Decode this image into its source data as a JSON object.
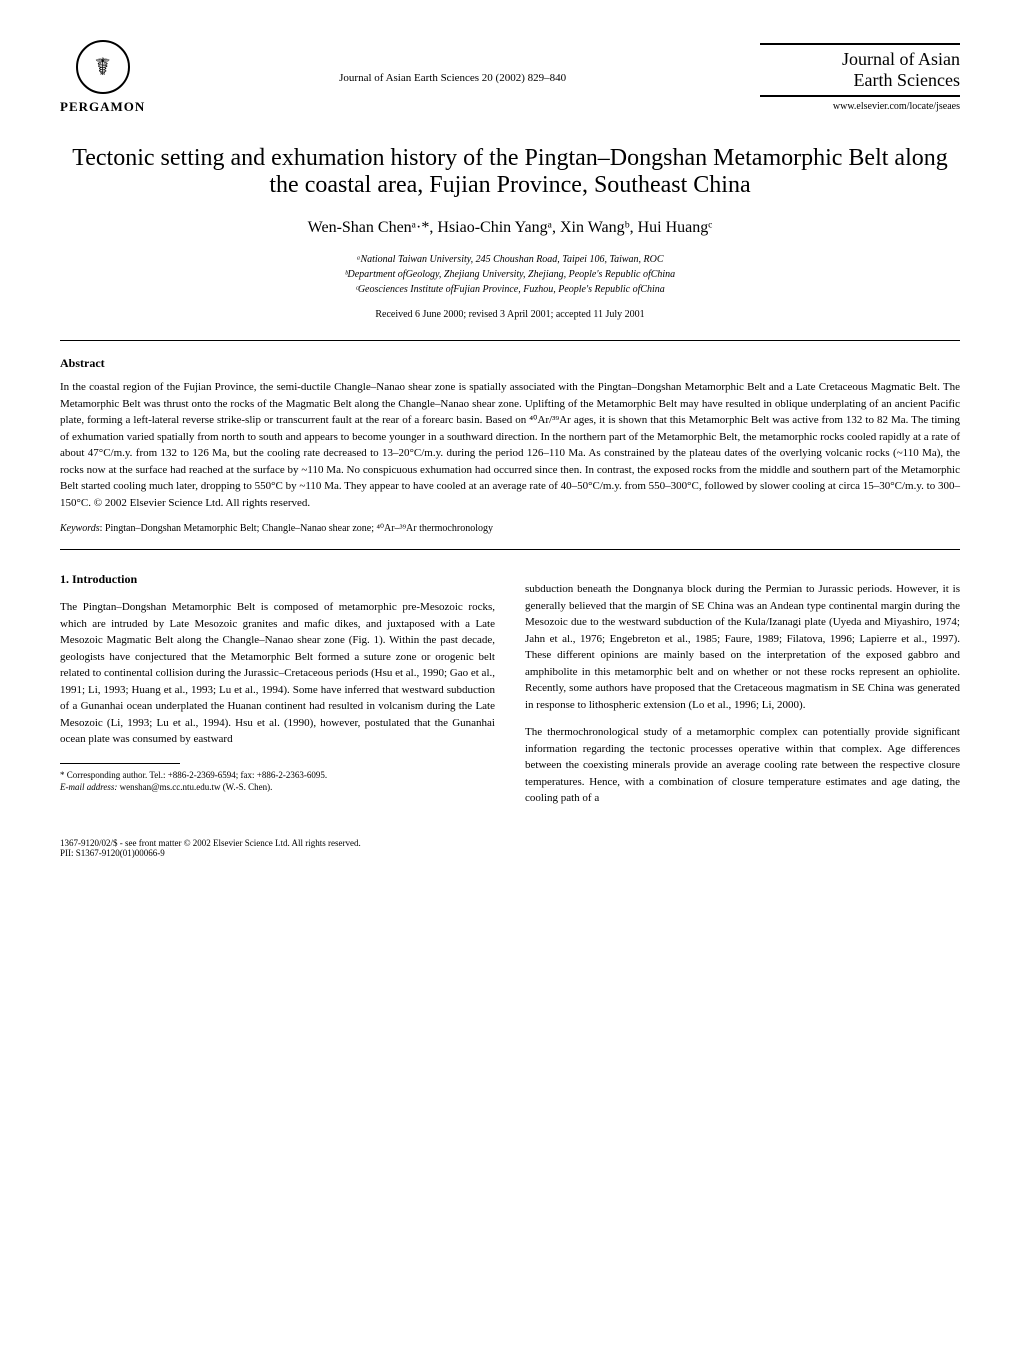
{
  "header": {
    "logo_text": "PERGAMON",
    "journal_ref": "Journal of Asian Earth Sciences 20 (2002) 829–840",
    "journal_name_line1": "Journal of Asian",
    "journal_name_line2": "Earth Sciences",
    "journal_url": "www.elsevier.com/locate/jseaes"
  },
  "title": "Tectonic setting and exhumation history of the Pingtan–Dongshan Metamorphic Belt along the coastal area, Fujian Province, Southeast China",
  "authors": "Wen-Shan Chenᵃ·*, Hsiao-Chin Yangᵃ, Xin Wangᵇ, Hui Huangᶜ",
  "affiliations": {
    "a": "ᵃNational Taiwan University, 245 Choushan Road, Taipei 106, Taiwan, ROC",
    "b": "ᵇDepartment ofGeology, Zhejiang University, Zhejiang, People's Republic ofChina",
    "c": "ᶜGeosciences Institute ofFujian Province, Fuzhou, People's Republic ofChina"
  },
  "received": "Received 6 June 2000; revised 3 April 2001; accepted 11 July 2001",
  "abstract": {
    "label": "Abstract",
    "text": "In the coastal region of the Fujian Province, the semi-ductile Changle–Nanao shear zone is spatially associated with the Pingtan–Dongshan Metamorphic Belt and a Late Cretaceous Magmatic Belt. The Metamorphic Belt was thrust onto the rocks of the Magmatic Belt along the Changle–Nanao shear zone. Uplifting of the Metamorphic Belt may have resulted in oblique underplating of an ancient Pacific plate, forming a left-lateral reverse strike-slip or transcurrent fault at the rear of a forearc basin. Based on ⁴⁰Ar/³⁹Ar ages, it is shown that this Metamorphic Belt was active from 132 to 82 Ma. The timing of exhumation varied spatially from north to south and appears to become younger in a southward direction. In the northern part of the Metamorphic Belt, the metamorphic rocks cooled rapidly at a rate of about 47°C/m.y. from 132 to 126 Ma, but the cooling rate decreased to 13–20°C/m.y. during the period 126–110 Ma. As constrained by the plateau dates of the overlying volcanic rocks (~110 Ma), the rocks now at the surface had reached at the surface by ~110 Ma. No conspicuous exhumation had occurred since then. In contrast, the exposed rocks from the middle and southern part of the Metamorphic Belt started cooling much later, dropping to 550°C by ~110 Ma. They appear to have cooled at an average rate of 40–50°C/m.y. from 550–300°C, followed by slower cooling at circa 15–30°C/m.y. to 300–150°C. © 2002 Elsevier Science Ltd. All rights reserved."
  },
  "keywords": {
    "label": "Keywords",
    "text": ": Pingtan–Dongshan Metamorphic Belt; Changle–Nanao shear zone; ⁴⁰Ar–³⁹Ar thermochronology"
  },
  "section1": {
    "heading": "1. Introduction",
    "col1_p1": "The Pingtan–Dongshan Metamorphic Belt is composed of metamorphic pre-Mesozoic rocks, which are intruded by Late Mesozoic granites and mafic dikes, and juxtaposed with a Late Mesozoic Magmatic Belt along the Changle–Nanao shear zone (Fig. 1). Within the past decade, geologists have conjectured that the Metamorphic Belt formed a suture zone or orogenic belt related to continental collision during the Jurassic–Cretaceous periods (Hsu et al., 1990; Gao et al., 1991; Li, 1993; Huang et al., 1993; Lu et al., 1994). Some have inferred that westward subduction of a Gunanhai ocean underplated the Huanan continent had resulted in volcanism during the Late Mesozoic (Li, 1993; Lu et al., 1994). Hsu et al. (1990), however, postulated that the Gunanhai ocean plate was consumed by eastward",
    "col2_p1": "subduction beneath the Dongnanya block during the Permian to Jurassic periods. However, it is generally believed that the margin of SE China was an Andean type continental margin during the Mesozoic due to the westward subduction of the Kula/Izanagi plate (Uyeda and Miyashiro, 1974; Jahn et al., 1976; Engebreton et al., 1985; Faure, 1989; Filatova, 1996; Lapierre et al., 1997). These different opinions are mainly based on the interpretation of the exposed gabbro and amphibolite in this metamorphic belt and on whether or not these rocks represent an ophiolite. Recently, some authors have proposed that the Cretaceous magmatism in SE China was generated in response to lithospheric extension (Lo et al., 1996; Li, 2000).",
    "col2_p2": "The thermochronological study of a metamorphic complex can potentially provide significant information regarding the tectonic processes operative within that complex. Age differences between the coexisting minerals provide an average cooling rate between the respective closure temperatures. Hence, with a combination of closure temperature estimates and age dating, the cooling path of a"
  },
  "footnote": {
    "line1": "* Corresponding author. Tel.: +886-2-2369-6594; fax: +886-2-2363-6095.",
    "line2_label": "E-mail address:",
    "line2_text": " wenshan@ms.cc.ntu.edu.tw (W.-S. Chen)."
  },
  "footer": {
    "line1": "1367-9120/02/$ - see front matter © 2002 Elsevier Science Ltd. All rights reserved.",
    "line2": "PII: S1367-9120(01)00066-9"
  }
}
